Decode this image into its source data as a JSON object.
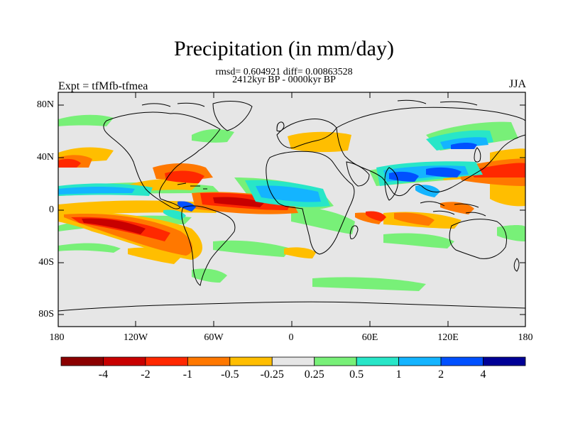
{
  "title": "Precipitation (in mm/day)",
  "stats_line": "rmsd= 0.604921 diff= 0.00863528",
  "period_line": "2412kyr BP - 0000kyr BP",
  "expt_label": "Expt = tfMfb-tfmea",
  "season": "JJA",
  "lat_labels": [
    "80N",
    "40N",
    "0",
    "40S",
    "80S"
  ],
  "lon_labels": [
    "180",
    "120W",
    "60W",
    "0",
    "60E",
    "120E",
    "180"
  ],
  "colorbar": {
    "colors": [
      "#8b0000",
      "#c80000",
      "#ff2800",
      "#ff7800",
      "#ffbe00",
      "#e6e6e6",
      "#78f078",
      "#28e6c8",
      "#14b4ff",
      "#0050ff",
      "#000096"
    ],
    "labels": [
      "-4",
      "-2",
      "-1",
      "-0.5",
      "-0.25",
      "0.25",
      "0.5",
      "1",
      "2",
      "4"
    ]
  },
  "colors": {
    "background": "#e6e6e6",
    "coast": "#000000"
  }
}
